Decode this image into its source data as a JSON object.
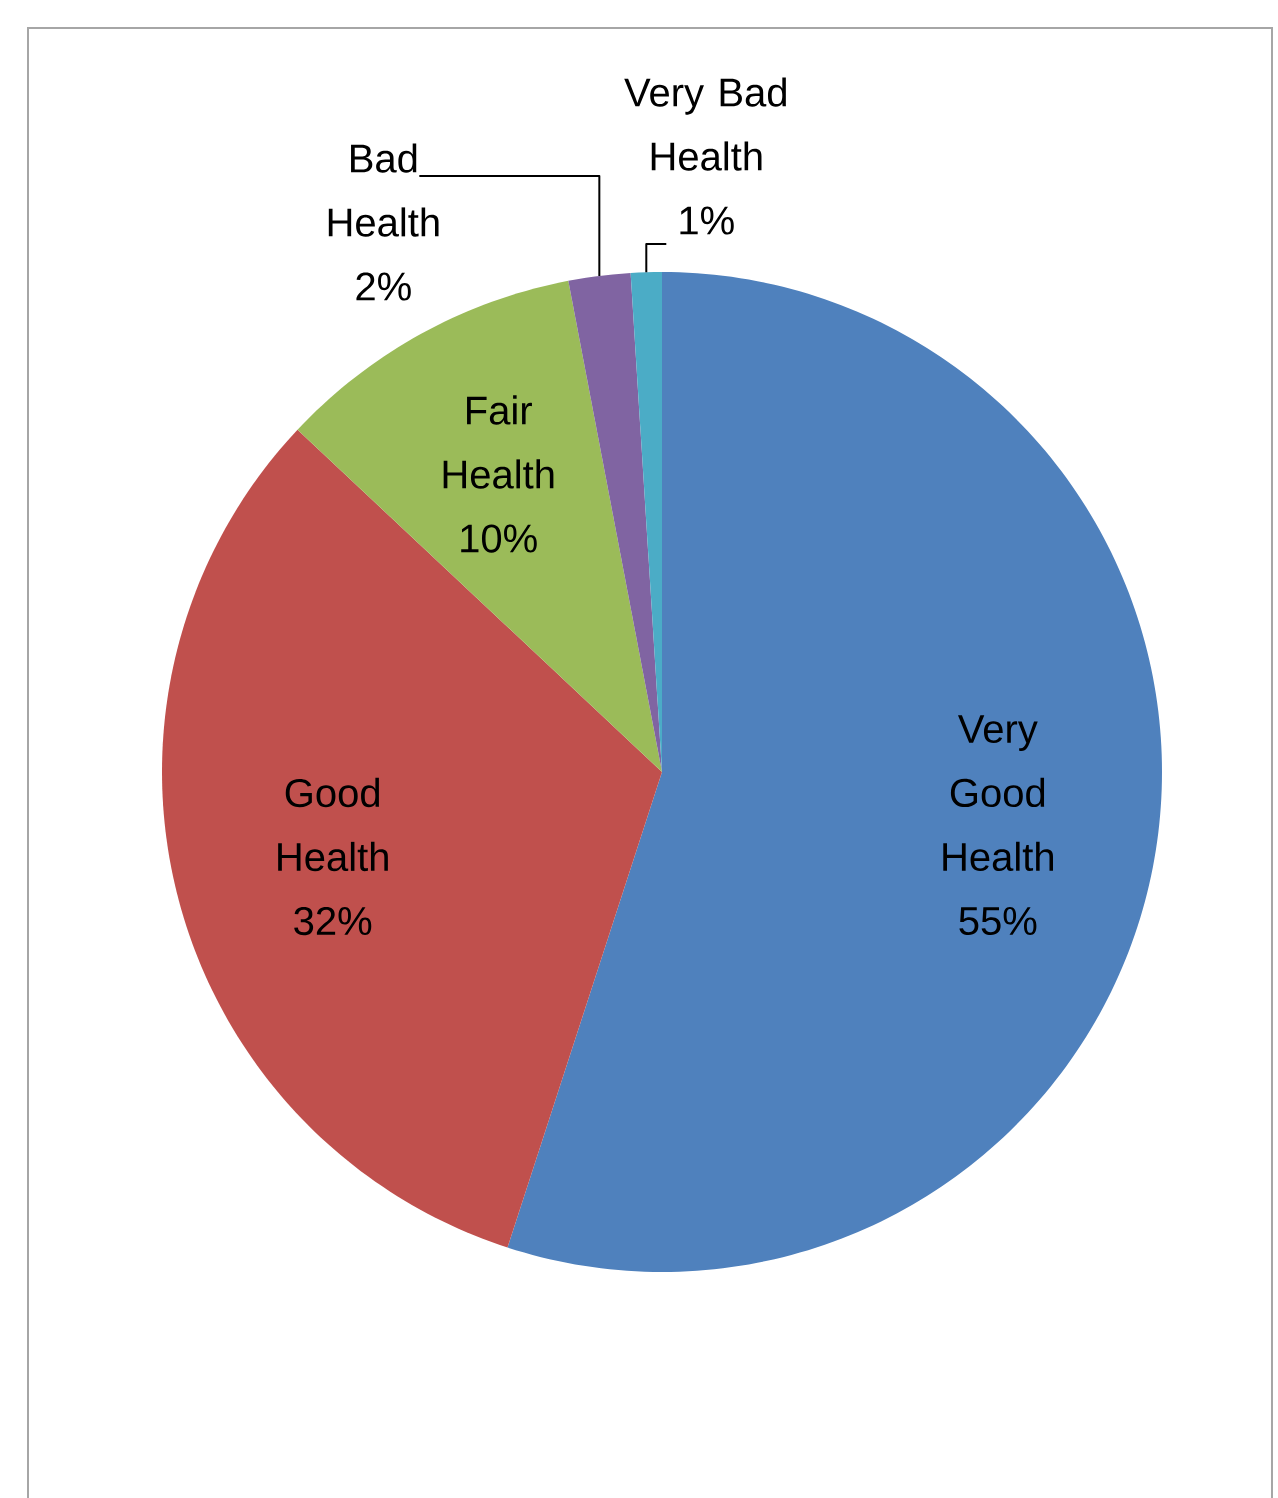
{
  "chart_data": {
    "type": "pie",
    "categories": [
      "Very Good Health",
      "Good Health",
      "Fair Health",
      "Bad Health",
      "Very Bad Health"
    ],
    "values": [
      55,
      32,
      10,
      2,
      1
    ],
    "value_labels": [
      "55%",
      "32%",
      "10%",
      "2%",
      "1%"
    ],
    "colors": [
      "#4f81bd",
      "#c0504d",
      "#9bbb59",
      "#8064a2",
      "#4bacc6"
    ]
  }
}
